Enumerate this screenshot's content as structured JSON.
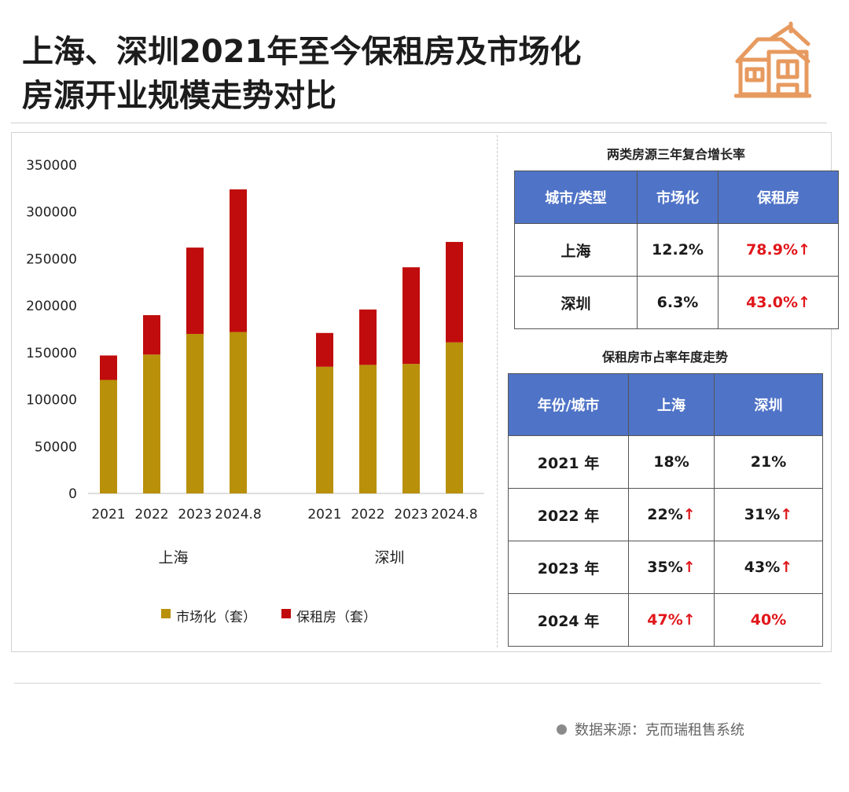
{
  "title": {
    "line1": "上海、深圳2021年至今保租房及市场化",
    "line2": "房源开业规模走势对比"
  },
  "icons": {
    "header": "house-icon",
    "source": "bullet-dot-icon"
  },
  "colors": {
    "market": "#b8900a",
    "rental": "#c00c0c",
    "table_header": "#4f73c7",
    "up_arrow": "#e0161b",
    "title": "#1c1c1c",
    "house": "#e79a5f"
  },
  "chart_data": {
    "type": "bar",
    "stacked": true,
    "ylim": [
      0,
      350000
    ],
    "yticks": [
      "350000",
      "300000",
      "250000",
      "200000",
      "150000",
      "100000",
      "50000",
      "0"
    ],
    "ytick_values": [
      350000,
      300000,
      250000,
      200000,
      150000,
      100000,
      50000,
      0
    ],
    "groups": [
      {
        "name": "上海",
        "categories": [
          "2021",
          "2022",
          "2023",
          "2024.8"
        ]
      },
      {
        "name": "深圳",
        "categories": [
          "2021",
          "2022",
          "2023",
          "2024.8"
        ]
      }
    ],
    "series": [
      {
        "name": "市场化（套）",
        "color": "#b8900a",
        "values": [
          [
            121000,
            148000,
            170000,
            172000
          ],
          [
            135000,
            137000,
            138000,
            161000
          ]
        ]
      },
      {
        "name": "保租房（套）",
        "color": "#c00c0c",
        "values": [
          [
            26000,
            42000,
            92000,
            152000
          ],
          [
            36000,
            59000,
            103000,
            107000
          ]
        ]
      }
    ],
    "legend": {
      "position": "bottom",
      "items": [
        "市场化（套）",
        "保租房（套）"
      ]
    }
  },
  "growth_table": {
    "caption": "两类房源三年复合增长率",
    "headers": [
      "城市/类型",
      "市场化",
      "保租房"
    ],
    "rows": [
      {
        "city": "上海",
        "market": "12.2%",
        "rental": "78.9%",
        "rental_arrow": "↑"
      },
      {
        "city": "深圳",
        "market": "6.3%",
        "rental": "43.0%",
        "rental_arrow": "↑"
      }
    ]
  },
  "share_table": {
    "caption": "保租房市占率年度走势",
    "headers": [
      "年份/城市",
      "上海",
      "深圳"
    ],
    "rows": [
      {
        "year": "2021 年",
        "sh": "18%",
        "sh_arrow": "",
        "sz": "21%",
        "sz_arrow": ""
      },
      {
        "year": "2022 年",
        "sh": "22%",
        "sh_arrow": "↑",
        "sz": "31%",
        "sz_arrow": "↑"
      },
      {
        "year": "2023 年",
        "sh": "35%",
        "sh_arrow": "↑",
        "sz": "43%",
        "sz_arrow": "↑"
      },
      {
        "year": "2024 年",
        "sh": "47%",
        "sh_arrow": "↑",
        "sz": "40%",
        "sz_arrow": ""
      }
    ]
  },
  "source": "数据来源：克而瑞租售系统"
}
